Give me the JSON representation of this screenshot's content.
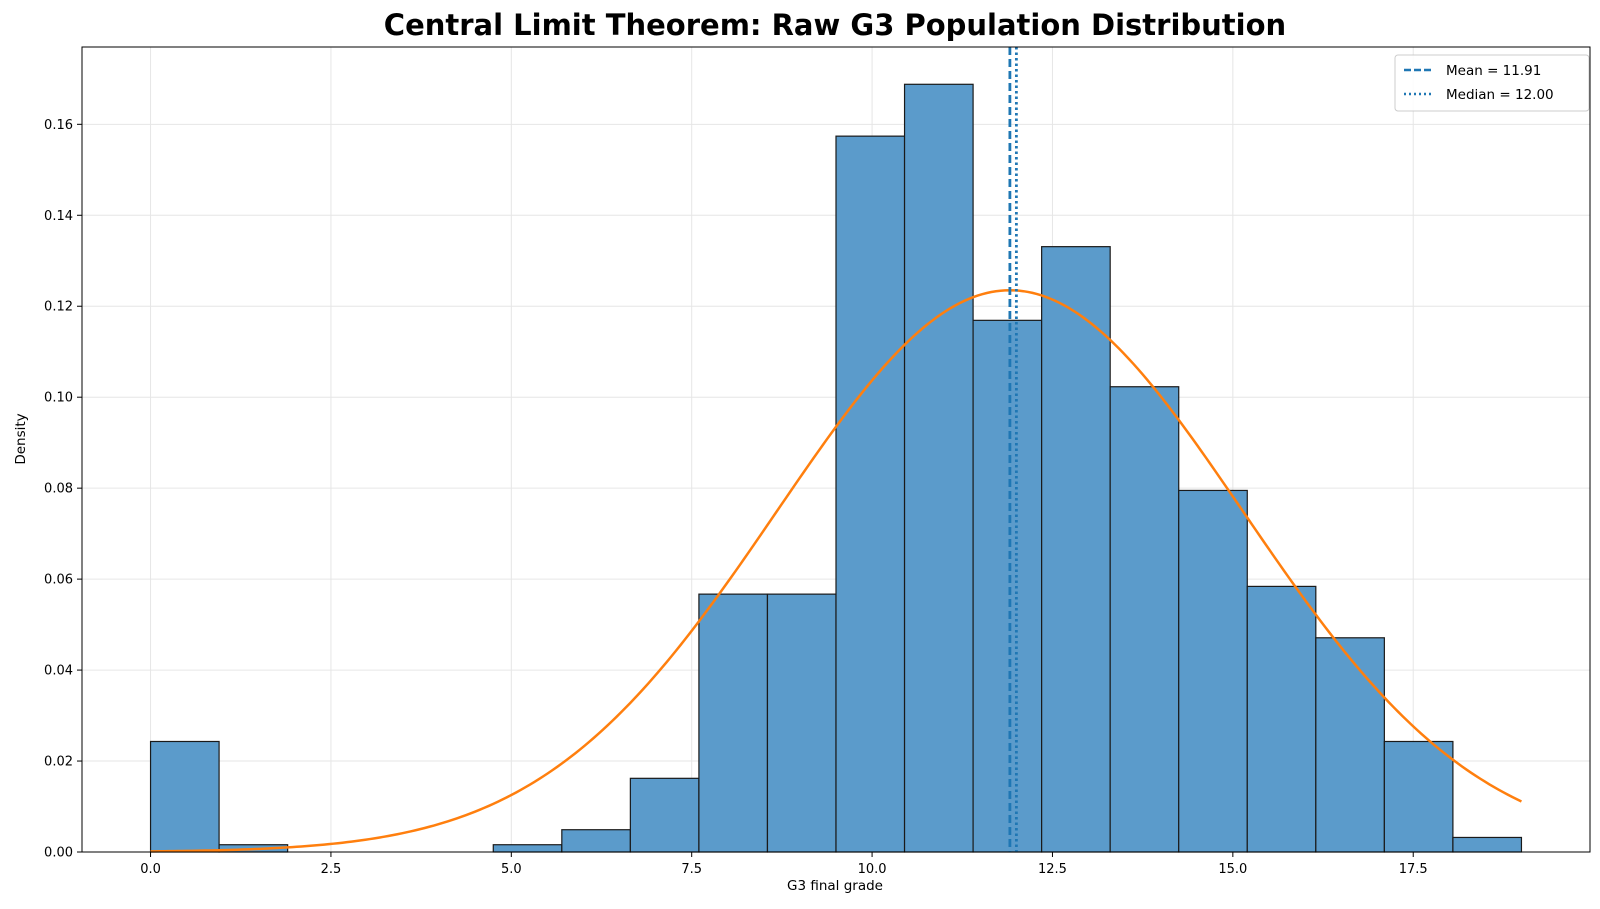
{
  "chart_data": {
    "type": "bar",
    "title": "Central Limit Theorem: Raw G3 Population Distribution",
    "xlabel": "G3 final grade",
    "ylabel": "Density",
    "xlim": [
      -0.95,
      19.95
    ],
    "ylim": [
      0,
      0.177
    ],
    "xticks": [
      0.0,
      2.5,
      5.0,
      7.5,
      10.0,
      12.5,
      15.0,
      17.5
    ],
    "xtick_labels": [
      "0.0",
      "2.5",
      "5.0",
      "7.5",
      "10.0",
      "12.5",
      "15.0",
      "17.5"
    ],
    "yticks": [
      0.0,
      0.02,
      0.04,
      0.06,
      0.08,
      0.1,
      0.12,
      0.14,
      0.16
    ],
    "ytick_labels": [
      "0.00",
      "0.02",
      "0.04",
      "0.06",
      "0.08",
      "0.10",
      "0.12",
      "0.14",
      "0.16"
    ],
    "grid": true,
    "legend_position": "top-right",
    "bin_edges": [
      0.0,
      0.95,
      1.9,
      2.85,
      3.8,
      4.75,
      5.7,
      6.65,
      7.6,
      8.55,
      9.5,
      10.45,
      11.4,
      12.35,
      13.3,
      14.25,
      15.2,
      16.15,
      17.1,
      18.05,
      19.0
    ],
    "values": [
      0.0243,
      0.0016,
      0.0,
      0.0,
      0.0,
      0.0016,
      0.0049,
      0.0162,
      0.0567,
      0.0567,
      0.1574,
      0.1688,
      0.1169,
      0.1331,
      0.1023,
      0.0795,
      0.0584,
      0.0471,
      0.0243,
      0.0032
    ],
    "normal_curve": {
      "mean": 11.91,
      "std": 3.23
    },
    "reference_lines": [
      {
        "label": "Mean = 11.91",
        "x": 11.91,
        "style": "dashed"
      },
      {
        "label": "Median = 12.00",
        "x": 12.0,
        "style": "dotted"
      }
    ],
    "colors": {
      "bars": "#5b9bcb",
      "bar_edge": "#1a1a1a",
      "curve": "#ff7f0e",
      "lines": "#1f77b4",
      "grid": "#e6e6e6"
    }
  }
}
